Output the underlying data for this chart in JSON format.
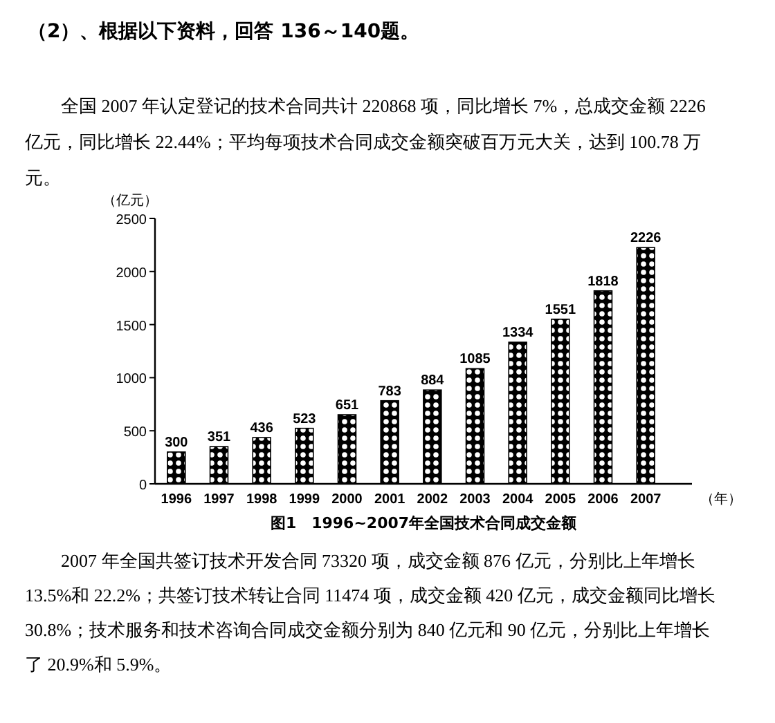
{
  "chart_data": {
    "type": "bar",
    "title": "图1　1996~2007年全国技术合同成交金额",
    "ylabel": "（亿元）",
    "xlabel": "（年）",
    "categories": [
      "1996",
      "1997",
      "1998",
      "1999",
      "2000",
      "2001",
      "2002",
      "2003",
      "2004",
      "2005",
      "2006",
      "2007"
    ],
    "values": [
      300,
      351,
      436,
      523,
      651,
      783,
      884,
      1085,
      1334,
      1551,
      1818,
      2226
    ],
    "color": "#000000",
    "data_labels": true,
    "ylim": [
      0,
      2500
    ],
    "yticks": [
      0,
      500,
      1000,
      1500,
      2000,
      2500
    ],
    "grid": false,
    "annotations": [
      "（2）、根据以下资料，回答 136～140题。",
      "全国 2007 年认定登记的技术合同共计 220868 项，同比增长 7%，总成交金额 2226 亿元，同比增长 22.44%；平均每项技术合同成交金额突破百万元大关，达到 100.78 万元。",
      "2007 年全国共签订技术开发合同 73320 项，成交金额 876 亿元，分别比上年增长 13.5%和 22.2%；共签订技术转让合同 11474 项，成交金额 420 亿元，成交金额同比增长 30.8%；技术服务和技术咨询合同成交金额分别为 840 亿元和 90 亿元，分别比上年增长了 20.9%和 5.9%。"
    ]
  }
}
